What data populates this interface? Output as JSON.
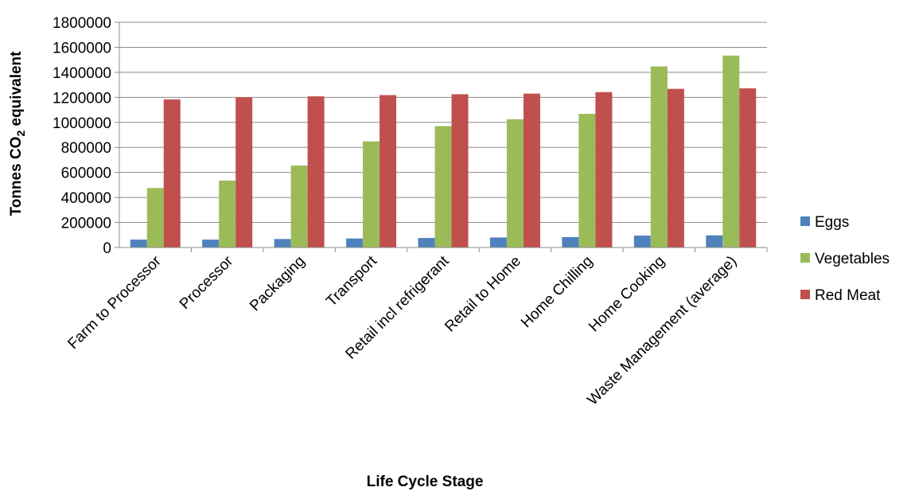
{
  "chart_data": {
    "type": "bar",
    "xlabel": "Life Cycle Stage",
    "ylabel": "Tonnes CO2 equivalent",
    "ylabel_parts": [
      "Tonnes CO",
      "2",
      " equivalent"
    ],
    "ylim": [
      0,
      1800000
    ],
    "yticks": [
      "0",
      "200000",
      "400000",
      "600000",
      "800000",
      "1000000",
      "1200000",
      "1400000",
      "1600000",
      "1800000"
    ],
    "grid": true,
    "legend_position": "right",
    "categories": [
      "Farm to Processor",
      "Processor",
      "Packaging",
      "Transport",
      "Retail incl refrigerant",
      "Retail to Home",
      "Home Chilling",
      "Home Cooking",
      "Waste Management (average)"
    ],
    "series": [
      {
        "name": "Eggs",
        "color": "#4F81BD",
        "values": [
          63000,
          63000,
          68000,
          72000,
          76000,
          80000,
          83000,
          95000,
          97000
        ]
      },
      {
        "name": "Vegetables",
        "color": "#9BBB59",
        "values": [
          475000,
          535000,
          655000,
          848000,
          970000,
          1025000,
          1068000,
          1447000,
          1534000
        ]
      },
      {
        "name": "Red Meat",
        "color": "#C0504D",
        "values": [
          1184000,
          1200000,
          1208000,
          1218000,
          1225000,
          1230000,
          1242000,
          1268000,
          1272000
        ]
      }
    ]
  }
}
